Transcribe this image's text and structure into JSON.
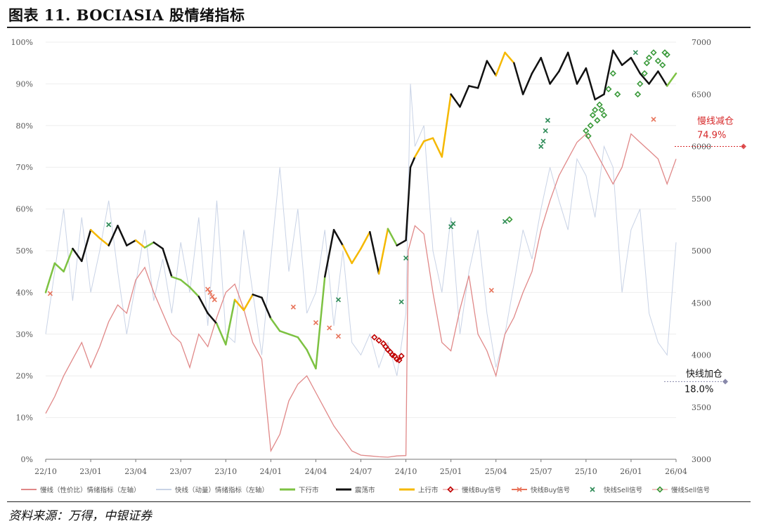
{
  "title": "图表 11. BOCIASIA 股情绪指标",
  "source": "资料来源：万得，中银证券",
  "chart_data": {
    "type": "line",
    "title": "图表 11. BOCIASIA 股情绪指标",
    "left_axis": {
      "ylim": [
        0,
        100
      ],
      "ticks": [
        "0%",
        "10%",
        "20%",
        "30%",
        "40%",
        "50%",
        "60%",
        "70%",
        "80%",
        "90%",
        "100%"
      ]
    },
    "right_axis": {
      "ylim": [
        3000,
        7000
      ],
      "ticks": [
        "3000",
        "3500",
        "4000",
        "4500",
        "5000",
        "5500",
        "6000",
        "6500",
        "7000"
      ]
    },
    "x_ticks": [
      "22/10",
      "23/01",
      "23/04",
      "23/07",
      "23/10",
      "24/01",
      "24/04",
      "24/07",
      "24/10",
      "25/01",
      "25/04",
      "25/07",
      "25/10",
      "26/01",
      "26/04"
    ],
    "grid": true,
    "legend_position": "bottom",
    "legend": [
      {
        "label": "慢线（性价比）情绪指标（左轴）",
        "color": "#e08888",
        "kind": "line"
      },
      {
        "label": "快线（动量）情绪指标（左轴）",
        "color": "#c9d3e6",
        "kind": "line"
      },
      {
        "label": "下行市",
        "color": "#7dc242",
        "kind": "line"
      },
      {
        "label": "震荡市",
        "color": "#111111",
        "kind": "line"
      },
      {
        "label": "上行市",
        "color": "#f5b800",
        "kind": "line"
      },
      {
        "label": "慢线Buy信号",
        "color": "#c00000",
        "kind": "diamond"
      },
      {
        "label": "快线Buy信号",
        "color": "#e8735a",
        "kind": "x"
      },
      {
        "label": "快线Sell信号",
        "color": "#2e8b57",
        "kind": "x"
      },
      {
        "label": "慢线Sell信号",
        "color": "#3a9a3a",
        "kind": "diamond"
      }
    ],
    "annotations": [
      {
        "label": "慢线减仓",
        "value_label": "74.9%",
        "value": 74.9,
        "color": "#d62728"
      },
      {
        "label": "快线加仓",
        "value_label": "18.0%",
        "value": 18.0,
        "color": "#111111"
      }
    ],
    "x_range": [
      0,
      14
    ],
    "slow_line": {
      "name": "慢线（性价比）情绪指标（左轴）",
      "x": [
        0,
        0.2,
        0.4,
        0.6,
        0.8,
        1.0,
        1.2,
        1.4,
        1.6,
        1.8,
        2.0,
        2.2,
        2.4,
        2.6,
        2.8,
        3.0,
        3.2,
        3.4,
        3.6,
        3.8,
        4.0,
        4.2,
        4.4,
        4.6,
        4.8,
        5.0,
        5.2,
        5.4,
        5.6,
        5.8,
        6.0,
        6.2,
        6.4,
        6.6,
        6.8,
        7.0,
        7.2,
        7.4,
        7.6,
        7.8,
        8.0,
        8.05,
        8.2,
        8.4,
        8.6,
        8.8,
        9.0,
        9.2,
        9.4,
        9.6,
        9.8,
        10.0,
        10.2,
        10.4,
        10.6,
        10.8,
        11.0,
        11.2,
        11.4,
        11.6,
        11.8,
        12.0,
        12.2,
        12.4,
        12.6,
        12.8,
        13.0,
        13.2,
        13.4,
        13.6,
        13.8,
        14.0
      ],
      "y": [
        11,
        15,
        20,
        24,
        28,
        22,
        27,
        33,
        37,
        35,
        43,
        46,
        40,
        35,
        30,
        28,
        22,
        30,
        27,
        34,
        40,
        42,
        36,
        28,
        24,
        2,
        6,
        14,
        18,
        20,
        16,
        12,
        8,
        5,
        2,
        1,
        0.8,
        0.6,
        0.5,
        0.8,
        0.9,
        50,
        56,
        54,
        40,
        28,
        26,
        36,
        44,
        30,
        26,
        20,
        30,
        34,
        40,
        45,
        55,
        62,
        68,
        72,
        76,
        78,
        74,
        70,
        66,
        70,
        78,
        76,
        74,
        72,
        66,
        72
      ]
    },
    "fast_line": {
      "name": "快线（动量）情绪指标（左轴）",
      "x": [
        0,
        0.2,
        0.4,
        0.6,
        0.8,
        1.0,
        1.2,
        1.4,
        1.6,
        1.8,
        2.0,
        2.2,
        2.4,
        2.6,
        2.8,
        3.0,
        3.2,
        3.4,
        3.6,
        3.8,
        4.0,
        4.2,
        4.4,
        4.6,
        4.8,
        5.0,
        5.2,
        5.4,
        5.6,
        5.8,
        6.0,
        6.2,
        6.4,
        6.6,
        6.8,
        7.0,
        7.2,
        7.4,
        7.6,
        7.8,
        8.0,
        8.1,
        8.2,
        8.4,
        8.6,
        8.8,
        9.0,
        9.2,
        9.4,
        9.6,
        9.8,
        10.0,
        10.2,
        10.4,
        10.6,
        10.8,
        11.0,
        11.2,
        11.4,
        11.6,
        11.8,
        12.0,
        12.2,
        12.4,
        12.6,
        12.8,
        13.0,
        13.2,
        13.4,
        13.6,
        13.8,
        14.0
      ],
      "y": [
        30,
        45,
        60,
        38,
        58,
        40,
        50,
        62,
        45,
        30,
        42,
        55,
        38,
        48,
        35,
        52,
        40,
        58,
        32,
        62,
        30,
        28,
        55,
        40,
        25,
        48,
        70,
        45,
        60,
        35,
        40,
        55,
        32,
        50,
        28,
        25,
        30,
        22,
        28,
        20,
        35,
        90,
        75,
        80,
        50,
        40,
        58,
        30,
        45,
        55,
        35,
        22,
        30,
        42,
        55,
        48,
        60,
        70,
        62,
        55,
        72,
        68,
        58,
        75,
        70,
        40,
        55,
        60,
        35,
        28,
        25,
        52
      ]
    },
    "index_line": {
      "name": "BOCIASIA",
      "regimes": {
        "down": "下行市",
        "sideways": "震荡市",
        "up": "上行市"
      },
      "x": [
        0,
        0.2,
        0.4,
        0.6,
        0.8,
        1.0,
        1.2,
        1.4,
        1.6,
        1.8,
        2.0,
        2.2,
        2.4,
        2.6,
        2.8,
        3.0,
        3.2,
        3.4,
        3.6,
        3.8,
        4.0,
        4.2,
        4.4,
        4.6,
        4.8,
        5.0,
        5.2,
        5.4,
        5.6,
        5.8,
        6.0,
        6.2,
        6.4,
        6.6,
        6.8,
        7.0,
        7.2,
        7.4,
        7.6,
        7.8,
        8.0,
        8.1,
        8.2,
        8.4,
        8.6,
        8.8,
        9.0,
        9.2,
        9.4,
        9.6,
        9.8,
        10.0,
        10.2,
        10.4,
        10.6,
        10.8,
        11.0,
        11.2,
        11.4,
        11.6,
        11.8,
        12.0,
        12.2,
        12.4,
        12.6,
        12.8,
        13.0,
        13.2,
        13.4,
        13.6,
        13.8,
        14.0
      ],
      "y": [
        4600,
        4880,
        4800,
        5020,
        4900,
        5200,
        5120,
        5050,
        5240,
        5050,
        5100,
        5030,
        5080,
        5020,
        4750,
        4720,
        4650,
        4560,
        4400,
        4300,
        4100,
        4530,
        4430,
        4580,
        4550,
        4350,
        4230,
        4200,
        4170,
        4050,
        3870,
        4750,
        5200,
        5050,
        4880,
        5020,
        5180,
        4780,
        5210,
        5050,
        5100,
        5800,
        5900,
        6050,
        6080,
        5900,
        6500,
        6380,
        6580,
        6560,
        6820,
        6680,
        6900,
        6800,
        6500,
        6700,
        6850,
        6600,
        6720,
        6900,
        6600,
        6750,
        6450,
        6500,
        6920,
        6780,
        6850,
        6700,
        6600,
        6720,
        6580,
        6700
      ],
      "regime": [
        "down",
        "down",
        "down",
        "sideways",
        "sideways",
        "up",
        "up",
        "sideways",
        "sideways",
        "sideways",
        "up",
        "down",
        "sideways",
        "sideways",
        "down",
        "down",
        "down",
        "sideways",
        "sideways",
        "down",
        "down",
        "up",
        "up",
        "sideways",
        "sideways",
        "down",
        "down",
        "down",
        "down",
        "down",
        "down",
        "sideways",
        "sideways",
        "up",
        "up",
        "up",
        "sideways",
        "up",
        "down",
        "sideways",
        "sideways",
        "sideways",
        "up",
        "up",
        "up",
        "up",
        "sideways",
        "sideways",
        "sideways",
        "sideways",
        "sideways",
        "up",
        "up",
        "sideways",
        "sideways",
        "sideways",
        "sideways",
        "sideways",
        "sideways",
        "sideways",
        "sideways",
        "sideways",
        "sideways",
        "sideways",
        "sideways",
        "sideways",
        "sideways",
        "sideways",
        "sideways",
        "sideways",
        "down",
        "down"
      ]
    },
    "signals": {
      "slow_buy": {
        "x": [
          7.3,
          7.4,
          7.5,
          7.55,
          7.6,
          7.65,
          7.7,
          7.75,
          7.8,
          7.85,
          7.9
        ],
        "y": [
          4170,
          4140,
          4110,
          4080,
          4050,
          4030,
          4000,
          3990,
          3960,
          3950,
          3990
        ]
      },
      "fast_buy": {
        "x": [
          0.1,
          3.6,
          3.65,
          3.7,
          3.75,
          5.5,
          6.0,
          6.3,
          6.5,
          9.9,
          13.5
        ],
        "y": [
          4590,
          4630,
          4600,
          4560,
          4530,
          4460,
          4310,
          4260,
          4180,
          4620,
          6260
        ]
      },
      "fast_sell": {
        "x": [
          1.4,
          6.5,
          7.9,
          8.0,
          9.0,
          9.05,
          10.2,
          11.0,
          11.05,
          11.1,
          11.15,
          13.1
        ],
        "y": [
          5250,
          4530,
          4510,
          4930,
          5230,
          5260,
          5280,
          6000,
          6050,
          6150,
          6250,
          6900
        ]
      },
      "slow_sell": {
        "x": [
          10.3,
          12.0,
          12.05,
          12.1,
          12.15,
          12.2,
          12.25,
          12.3,
          12.35,
          12.4,
          12.5,
          12.6,
          12.7,
          13.15,
          13.2,
          13.3,
          13.35,
          13.4,
          13.5,
          13.6,
          13.7,
          13.75,
          13.8
        ],
        "y": [
          5300,
          6150,
          6100,
          6200,
          6300,
          6350,
          6250,
          6400,
          6350,
          6300,
          6550,
          6700,
          6500,
          6500,
          6600,
          6700,
          6800,
          6850,
          6900,
          6820,
          6780,
          6900,
          6880
        ]
      }
    }
  }
}
